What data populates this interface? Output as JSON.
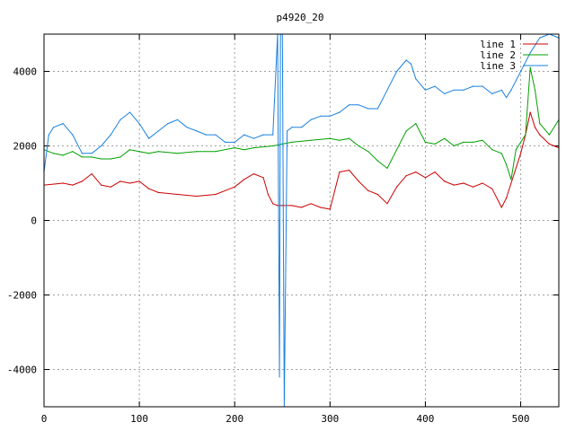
{
  "chart_data": {
    "type": "line",
    "title": "p4920_20",
    "xlabel": "",
    "ylabel": "",
    "xlim": [
      0,
      540
    ],
    "ylim": [
      -5000,
      5000
    ],
    "xticks": [
      0,
      100,
      200,
      300,
      400,
      500
    ],
    "yticks": [
      -4000,
      -2000,
      0,
      2000,
      4000
    ],
    "grid": true,
    "legend_position": "top-right",
    "series": [
      {
        "name": "line 1",
        "color": "#cc0000",
        "x": [
          0,
          20,
          30,
          40,
          50,
          60,
          70,
          80,
          90,
          100,
          110,
          120,
          140,
          160,
          180,
          200,
          210,
          220,
          230,
          235,
          240,
          245,
          250,
          260,
          270,
          280,
          290,
          300,
          310,
          320,
          330,
          340,
          350,
          360,
          370,
          380,
          390,
          400,
          410,
          420,
          430,
          440,
          450,
          460,
          470,
          480,
          485,
          490,
          500,
          505,
          510,
          515,
          520,
          530,
          540
        ],
        "y": [
          950,
          1000,
          950,
          1050,
          1250,
          950,
          900,
          1050,
          1000,
          1050,
          850,
          750,
          700,
          650,
          700,
          900,
          1100,
          1250,
          1150,
          700,
          450,
          400,
          400,
          400,
          350,
          450,
          350,
          300,
          1300,
          1350,
          1050,
          800,
          700,
          450,
          900,
          1200,
          1300,
          1150,
          1300,
          1050,
          950,
          1000,
          900,
          1000,
          850,
          350,
          600,
          1000,
          1800,
          2300,
          2900,
          2500,
          2300,
          2050,
          1950
        ]
      },
      {
        "name": "line 2",
        "color": "#00a000",
        "x": [
          0,
          10,
          20,
          30,
          40,
          50,
          60,
          70,
          80,
          90,
          100,
          110,
          120,
          140,
          160,
          180,
          200,
          210,
          220,
          240,
          250,
          260,
          280,
          300,
          310,
          320,
          330,
          340,
          350,
          360,
          370,
          380,
          390,
          400,
          410,
          420,
          430,
          440,
          450,
          460,
          470,
          480,
          485,
          490,
          495,
          500,
          505,
          510,
          515,
          520,
          530,
          540
        ],
        "y": [
          1900,
          1800,
          1750,
          1850,
          1700,
          1700,
          1650,
          1650,
          1700,
          1900,
          1850,
          1800,
          1850,
          1800,
          1850,
          1850,
          1950,
          1900,
          1950,
          2000,
          2050,
          2100,
          2150,
          2200,
          2150,
          2200,
          2000,
          1850,
          1600,
          1400,
          1900,
          2400,
          2600,
          2100,
          2050,
          2200,
          2000,
          2100,
          2100,
          2150,
          1900,
          1800,
          1500,
          1100,
          1900,
          2100,
          2300,
          4100,
          3500,
          2600,
          2300,
          2700
        ]
      },
      {
        "name": "line 3",
        "color": "#1a80e0",
        "x": [
          0,
          5,
          10,
          20,
          30,
          40,
          50,
          60,
          70,
          80,
          90,
          100,
          110,
          120,
          130,
          140,
          150,
          160,
          170,
          180,
          190,
          200,
          210,
          220,
          230,
          240,
          245,
          247,
          248,
          250,
          252,
          255,
          260,
          270,
          280,
          290,
          300,
          310,
          320,
          330,
          340,
          350,
          360,
          370,
          380,
          385,
          390,
          400,
          410,
          420,
          430,
          440,
          450,
          460,
          470,
          480,
          485,
          490,
          500,
          510,
          520,
          530,
          540
        ],
        "y": [
          1300,
          2300,
          2500,
          2600,
          2300,
          1800,
          1800,
          2000,
          2300,
          2700,
          2900,
          2600,
          2200,
          2400,
          2600,
          2700,
          2500,
          2400,
          2300,
          2300,
          2100,
          2100,
          2300,
          2200,
          2300,
          2300,
          5000,
          -4200,
          5000,
          5000,
          -5000,
          2400,
          2500,
          2500,
          2700,
          2800,
          2800,
          2900,
          3100,
          3100,
          3000,
          3000,
          3500,
          4000,
          4300,
          4200,
          3800,
          3500,
          3600,
          3400,
          3500,
          3500,
          3600,
          3600,
          3400,
          3500,
          3300,
          3500,
          4000,
          4500,
          4900,
          5000,
          4900
        ]
      }
    ]
  }
}
